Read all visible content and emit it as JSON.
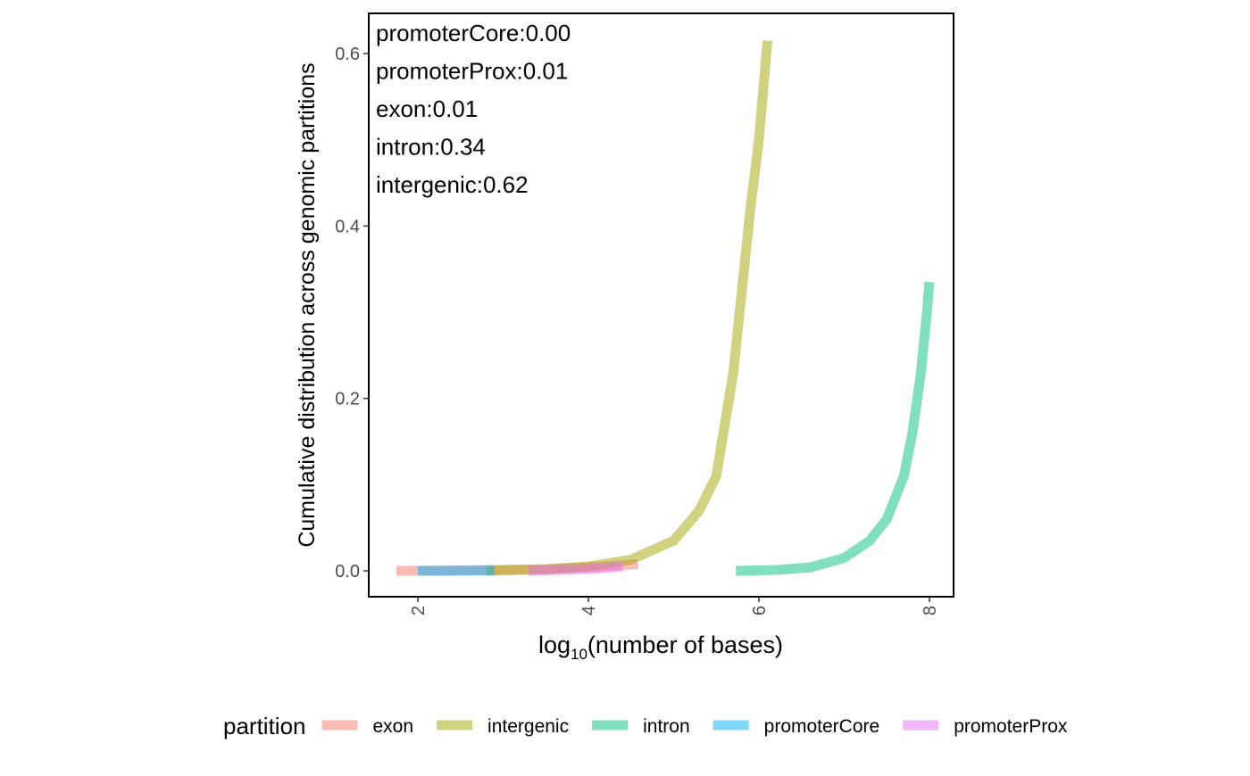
{
  "chart_data": {
    "type": "line",
    "ylabel": "Cumulative distribution across genomic partitions",
    "xlabel_parts": [
      "log",
      "10",
      "(number of bases)"
    ],
    "annotations": [
      "promoterCore:0.00",
      "promoterProx:0.01",
      "exon:0.01",
      "intron:0.34",
      "intergenic:0.62"
    ],
    "legend_title": "partition",
    "legend_position": "bottom",
    "xlim": [
      1.424,
      8.283
    ],
    "ylim": [
      -0.03,
      0.6466
    ],
    "xticks": [
      2,
      4,
      6,
      8
    ],
    "yticks": [
      {
        "value": 0,
        "label": "0.0"
      },
      {
        "value": 0.2,
        "label": "0.2"
      },
      {
        "value": 0.4,
        "label": "0.4"
      },
      {
        "value": 0.6,
        "label": "0.6"
      }
    ],
    "grid": false,
    "series": [
      {
        "name": "exon",
        "color": "#F8766D",
        "x": [
          1.75,
          2.5,
          3.5,
          4.2,
          4.58
        ],
        "values": [
          0,
          0.0005,
          0.002,
          0.005,
          0.008
        ]
      },
      {
        "name": "intergenic",
        "color": "#A3A500",
        "x": [
          2.8,
          3.5,
          4,
          4.5,
          5,
          5.3,
          5.5,
          5.7,
          5.9,
          6,
          6.1
        ],
        "values": [
          0,
          0.002,
          0.005,
          0.013,
          0.035,
          0.07,
          0.11,
          0.23,
          0.42,
          0.5,
          0.615
        ]
      },
      {
        "name": "intron",
        "color": "#00BF7D",
        "x": [
          5.73,
          6.2,
          6.6,
          7,
          7.3,
          7.5,
          7.7,
          7.8,
          7.9,
          7.97,
          8
        ],
        "values": [
          0,
          0.001,
          0.004,
          0.015,
          0.035,
          0.06,
          0.11,
          0.16,
          0.23,
          0.3,
          0.335
        ]
      },
      {
        "name": "promoterCore",
        "color": "#00B0F6",
        "x": [
          2,
          2.5,
          2.9
        ],
        "values": [
          0,
          0.0002,
          0.0005
        ]
      },
      {
        "name": "promoterProx",
        "color": "#E76BF3",
        "x": [
          3.3,
          4,
          4.4
        ],
        "values": [
          0,
          0.002,
          0.005
        ]
      }
    ]
  }
}
